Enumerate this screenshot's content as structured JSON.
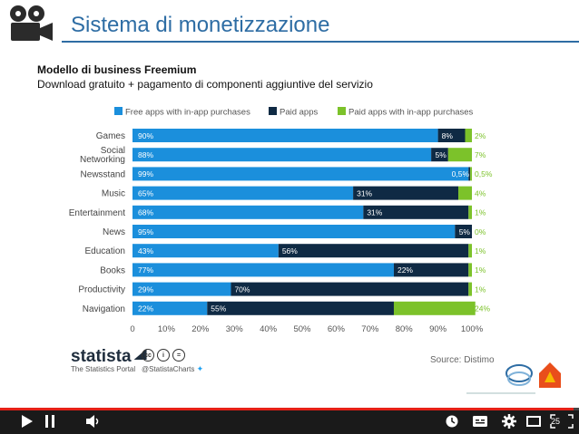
{
  "slide": {
    "title": "Sistema di monetizzazione",
    "subtitle_bold": "Modello di business Freemium",
    "subtitle": "Download gratuito + pagamento di componenti aggiuntive del servizio",
    "source": "Source: Distimo",
    "logo_text": "statista",
    "logo_subtext": "The Statistics Portal",
    "cc_handle": "@StatistaCharts",
    "page_number": "25"
  },
  "colors": {
    "title": "#2e6da4",
    "free_inapp": "#1b8fdc",
    "paid": "#0f2a44",
    "paid_inapp": "#7cc22a"
  },
  "player": {
    "progress_fraction": 0.99,
    "icons": [
      "play-icon",
      "pause-icon",
      "volume-icon",
      "clock-icon",
      "captions-icon",
      "gear-icon",
      "theater-icon",
      "fullscreen-icon"
    ]
  },
  "chart_data": {
    "type": "bar",
    "orientation": "horizontal",
    "stacked": true,
    "categories": [
      "Games",
      "Social Networking",
      "Newsstand",
      "Music",
      "Entertainment",
      "News",
      "Education",
      "Books",
      "Productivity",
      "Navigation"
    ],
    "category_labels": [
      [
        "Games"
      ],
      [
        "Social",
        "Networking"
      ],
      [
        "Newsstand"
      ],
      [
        "Music"
      ],
      [
        "Entertainment"
      ],
      [
        "News"
      ],
      [
        "Education"
      ],
      [
        "Books"
      ],
      [
        "Productivity"
      ],
      [
        "Navigation"
      ]
    ],
    "series": [
      {
        "name": "Free apps with in-app purchases",
        "values": [
          90,
          88,
          99,
          65,
          68,
          95,
          43,
          77,
          29,
          22
        ],
        "labels": [
          "90%",
          "88%",
          "99%",
          "65%",
          "68%",
          "95%",
          "43%",
          "77%",
          "29%",
          "22%"
        ]
      },
      {
        "name": "Paid apps",
        "values": [
          8,
          5,
          0.5,
          31,
          31,
          5,
          56,
          22,
          70,
          55
        ],
        "labels": [
          "8%",
          "5%",
          "0,5%",
          "31%",
          "31%",
          "5%",
          "56%",
          "22%",
          "70%",
          "55%"
        ]
      },
      {
        "name": "Paid apps with in-app purchases",
        "values": [
          2,
          7,
          0.5,
          4,
          1,
          0,
          1,
          1,
          1,
          24
        ],
        "labels": [
          "2%",
          "7%",
          "0,5%",
          "4%",
          "1%",
          "0%",
          "1%",
          "1%",
          "1%",
          "24%"
        ]
      }
    ],
    "x_ticks": [
      "0",
      "10%",
      "20%",
      "30%",
      "40%",
      "50%",
      "60%",
      "70%",
      "80%",
      "90%",
      "100%"
    ],
    "xlim": [
      0,
      100
    ],
    "legend_position": "top",
    "grid": false
  }
}
